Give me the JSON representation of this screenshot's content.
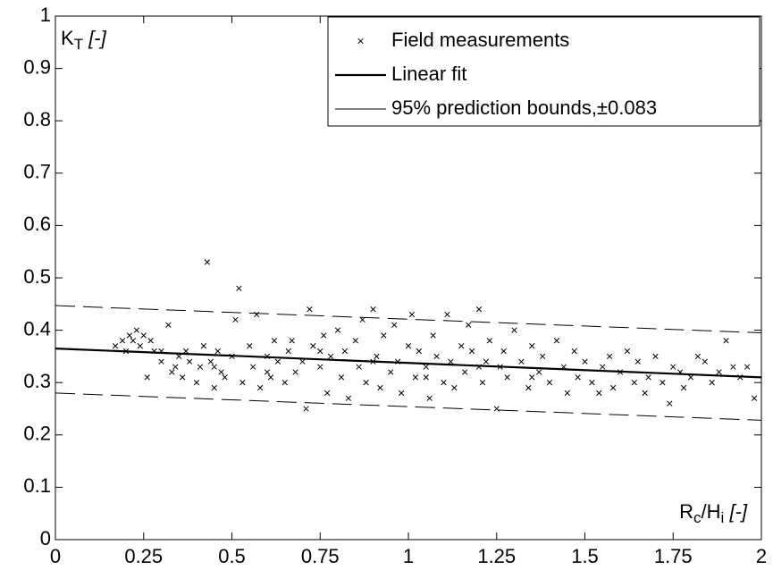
{
  "chart_data": {
    "type": "scatter",
    "xlim": [
      0,
      2
    ],
    "ylim": [
      0,
      1
    ],
    "xticks": [
      0,
      0.25,
      0.5,
      0.75,
      1,
      1.25,
      1.5,
      1.75,
      2
    ],
    "yticks": [
      0,
      0.1,
      0.2,
      0.3,
      0.4,
      0.5,
      0.6,
      0.7,
      0.8,
      0.9,
      1
    ],
    "ylabel": [
      {
        "text": "K"
      },
      {
        "text": "T",
        "sub": true
      },
      {
        "text": " [-]",
        "italic": true
      }
    ],
    "xlabel": [
      {
        "text": "R"
      },
      {
        "text": "c",
        "sub": true
      },
      {
        "text": "/H"
      },
      {
        "text": "i",
        "sub": true
      },
      {
        "text": " [-]",
        "italic": true
      }
    ],
    "legend": "top-right",
    "series": [
      {
        "name": "Field measurements",
        "kind": "scatter",
        "color": "#000000",
        "x": [
          0.17,
          0.19,
          0.2,
          0.21,
          0.22,
          0.23,
          0.24,
          0.25,
          0.26,
          0.27,
          0.28,
          0.3,
          0.32,
          0.33,
          0.34,
          0.35,
          0.36,
          0.37,
          0.38,
          0.4,
          0.41,
          0.42,
          0.43,
          0.44,
          0.45,
          0.46,
          0.47,
          0.48,
          0.5,
          0.51,
          0.52,
          0.53,
          0.55,
          0.56,
          0.57,
          0.58,
          0.6,
          0.61,
          0.62,
          0.63,
          0.65,
          0.66,
          0.67,
          0.68,
          0.7,
          0.71,
          0.72,
          0.73,
          0.75,
          0.76,
          0.77,
          0.78,
          0.8,
          0.81,
          0.82,
          0.83,
          0.85,
          0.86,
          0.87,
          0.88,
          0.9,
          0.91,
          0.92,
          0.93,
          0.95,
          0.96,
          0.97,
          0.98,
          1.0,
          1.01,
          1.02,
          1.03,
          1.05,
          1.06,
          1.07,
          1.08,
          1.1,
          1.11,
          1.12,
          1.13,
          1.15,
          1.16,
          1.17,
          1.18,
          1.2,
          1.21,
          1.22,
          1.23,
          1.25,
          1.26,
          1.27,
          1.28,
          1.3,
          1.32,
          1.34,
          1.35,
          1.37,
          1.38,
          1.4,
          1.42,
          1.44,
          1.45,
          1.47,
          1.48,
          1.5,
          1.52,
          1.54,
          1.55,
          1.57,
          1.58,
          1.6,
          1.62,
          1.64,
          1.65,
          1.67,
          1.68,
          1.7,
          1.72,
          1.74,
          1.75,
          1.77,
          1.78,
          1.8,
          1.82,
          1.84,
          1.86,
          1.88,
          1.9,
          1.92,
          1.94,
          1.96,
          1.98,
          0.3,
          0.45,
          0.6,
          0.75,
          0.9,
          1.05,
          1.2,
          1.35
        ],
        "values": [
          0.37,
          0.38,
          0.36,
          0.39,
          0.38,
          0.4,
          0.37,
          0.39,
          0.31,
          0.38,
          0.36,
          0.34,
          0.41,
          0.32,
          0.33,
          0.35,
          0.31,
          0.36,
          0.34,
          0.3,
          0.33,
          0.37,
          0.53,
          0.34,
          0.29,
          0.36,
          0.32,
          0.31,
          0.35,
          0.42,
          0.48,
          0.3,
          0.37,
          0.33,
          0.43,
          0.29,
          0.35,
          0.31,
          0.38,
          0.34,
          0.3,
          0.36,
          0.38,
          0.32,
          0.34,
          0.25,
          0.44,
          0.37,
          0.33,
          0.39,
          0.28,
          0.35,
          0.4,
          0.31,
          0.36,
          0.27,
          0.38,
          0.33,
          0.42,
          0.3,
          0.44,
          0.35,
          0.29,
          0.39,
          0.32,
          0.41,
          0.34,
          0.28,
          0.37,
          0.43,
          0.31,
          0.36,
          0.33,
          0.27,
          0.39,
          0.35,
          0.3,
          0.43,
          0.34,
          0.29,
          0.37,
          0.32,
          0.41,
          0.36,
          0.44,
          0.3,
          0.34,
          0.38,
          0.25,
          0.33,
          0.36,
          0.31,
          0.4,
          0.34,
          0.29,
          0.37,
          0.32,
          0.35,
          0.3,
          0.38,
          0.33,
          0.28,
          0.36,
          0.31,
          0.34,
          0.3,
          0.28,
          0.33,
          0.35,
          0.29,
          0.32,
          0.36,
          0.3,
          0.34,
          0.28,
          0.31,
          0.35,
          0.3,
          0.26,
          0.33,
          0.32,
          0.29,
          0.31,
          0.35,
          0.34,
          0.3,
          0.32,
          0.38,
          0.33,
          0.31,
          0.33,
          0.27,
          0.36,
          0.33,
          0.32,
          0.36,
          0.34,
          0.31,
          0.33,
          0.31
        ]
      },
      {
        "name": "Linear fit",
        "kind": "line",
        "color": "#000000",
        "x": [
          0,
          2
        ],
        "values": [
          0.365,
          0.31
        ]
      },
      {
        "name": "95% prediction bounds,±0.083",
        "kind": "bounds",
        "color": "#000000",
        "x": [
          0,
          2
        ],
        "upper": [
          0.447,
          0.395
        ],
        "lower": [
          0.28,
          0.228
        ]
      }
    ]
  }
}
